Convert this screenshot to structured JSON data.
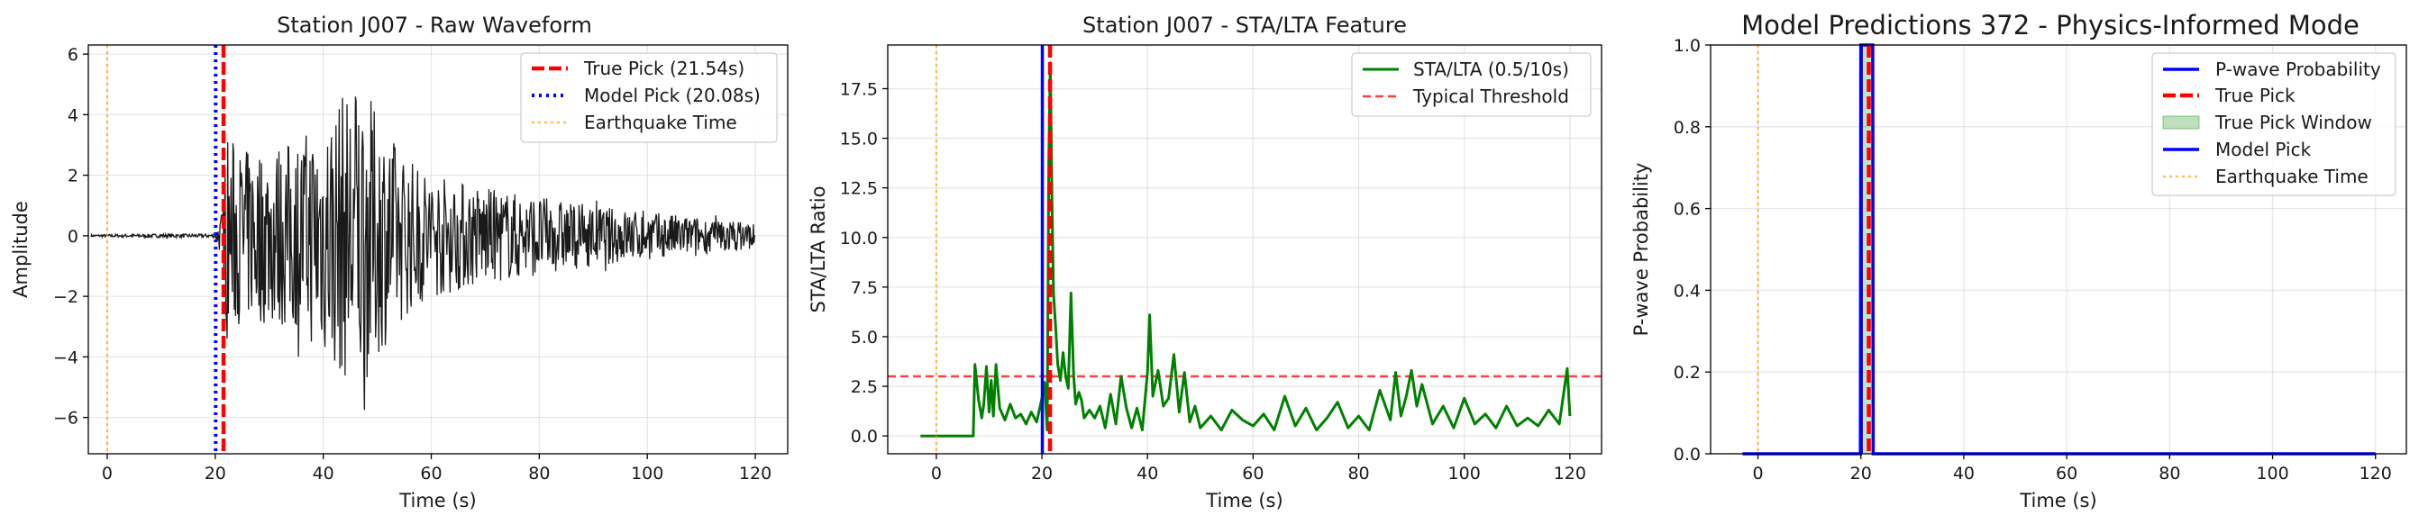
{
  "chart_data": [
    {
      "type": "line",
      "title": "Station J007 - Raw Waveform",
      "xlabel": "Time (s)",
      "ylabel": "Amplitude",
      "xlim": [
        -3.5,
        126
      ],
      "ylim": [
        -7.2,
        6.3
      ],
      "xticks": [
        0,
        20,
        40,
        60,
        80,
        100,
        120
      ],
      "xtick_labels": [
        "0",
        "20",
        "40",
        "60",
        "80",
        "100",
        "120"
      ],
      "yticks": [
        -6,
        -4,
        -2,
        0,
        2,
        4,
        6
      ],
      "ytick_labels": [
        "−6",
        "−4",
        "−2",
        "0",
        "2",
        "4",
        "6"
      ],
      "grid": true,
      "legend_position": "upper-right",
      "vlines": [
        {
          "name": "True Pick (21.54s)",
          "x": 21.54,
          "color": "#ff0000",
          "style": "dashed"
        },
        {
          "name": "Model Pick (20.08s)",
          "x": 20.08,
          "color": "#0000ff",
          "style": "dotted"
        },
        {
          "name": "Earthquake Time",
          "x": 0,
          "color": "#ffa500",
          "style": "dotted"
        }
      ],
      "series": [
        {
          "color": "#1a1a1a",
          "approx_envelope": {
            "x": [
              -3,
              0,
              10,
              20,
              21.5,
              22,
              25,
              30,
              35,
              40,
              45,
              47,
              50,
              55,
              60,
              70,
              80,
              90,
              100,
              110,
              120
            ],
            "amplitude": [
              0.04,
              0.05,
              0.06,
              0.06,
              1.0,
              3.5,
              2.8,
              3.0,
              3.2,
              4.0,
              5.0,
              5.2,
              4.0,
              2.7,
              2.1,
              1.6,
              1.3,
              1.0,
              0.8,
              0.6,
              0.45
            ]
          }
        }
      ]
    },
    {
      "type": "line",
      "title": "Station J007 - STA/LTA Feature",
      "xlabel": "Time (s)",
      "ylabel": "STA/LTA Ratio",
      "xlim": [
        -9.2,
        126
      ],
      "ylim": [
        -0.9,
        19.7
      ],
      "xticks": [
        0,
        20,
        40,
        60,
        80,
        100,
        120
      ],
      "xtick_labels": [
        "0",
        "20",
        "40",
        "60",
        "80",
        "100",
        "120"
      ],
      "yticks": [
        0.0,
        2.5,
        5.0,
        7.5,
        10.0,
        12.5,
        15.0,
        17.5
      ],
      "ytick_labels": [
        "0.0",
        "2.5",
        "5.0",
        "7.5",
        "10.0",
        "12.5",
        "15.0",
        "17.5"
      ],
      "grid": true,
      "legend_position": "upper-right",
      "hlines": [
        {
          "name": "Typical Threshold",
          "y": 3.0,
          "color": "#ff0000",
          "style": "dashed"
        }
      ],
      "vlines": [
        {
          "x": 20.08,
          "color": "#0000ff",
          "style": "solid"
        },
        {
          "x": 21.54,
          "color": "#ff0000",
          "style": "dashed"
        },
        {
          "x": 0,
          "color": "#ffa500",
          "style": "dotted"
        }
      ],
      "series": [
        {
          "name": "STA/LTA (0.5/10s)",
          "color": "#008000",
          "x": [
            -3,
            7,
            7.3,
            8,
            8.6,
            9,
            9.5,
            10,
            10.4,
            10.8,
            11.3,
            12,
            13,
            14,
            15,
            16,
            17,
            18,
            19,
            20,
            20.5,
            21,
            21.3,
            21.6,
            21.9,
            22.2,
            22.6,
            23,
            23.5,
            24,
            24.5,
            25,
            25.5,
            26,
            26.4,
            27,
            27.5,
            28,
            29,
            30,
            31,
            32,
            33,
            34,
            35,
            36,
            37,
            38,
            39,
            40,
            40.4,
            41,
            42,
            43,
            44,
            45,
            46,
            47,
            48,
            49,
            50,
            52,
            54,
            56,
            58,
            60,
            62,
            64,
            66,
            68,
            70,
            72,
            74,
            76,
            78,
            80,
            82,
            84,
            86,
            87,
            88,
            89,
            90,
            91,
            92,
            94,
            96,
            98,
            100,
            102,
            104,
            106,
            108,
            110,
            112,
            114,
            116,
            118,
            119.5,
            120
          ],
          "y": [
            0.0,
            0.0,
            3.6,
            1.8,
            0.9,
            1.6,
            3.5,
            1.2,
            2.8,
            1.0,
            3.6,
            1.4,
            0.8,
            1.6,
            0.9,
            1.1,
            0.6,
            1.2,
            0.7,
            1.9,
            2.7,
            0.3,
            14.0,
            18.8,
            12.0,
            7.2,
            5.5,
            3.6,
            2.8,
            4.2,
            3.0,
            2.4,
            7.2,
            3.1,
            1.6,
            2.2,
            1.8,
            0.9,
            1.3,
            0.9,
            1.5,
            0.4,
            2.1,
            0.6,
            3.0,
            1.4,
            0.4,
            1.4,
            0.3,
            3.2,
            6.1,
            2.0,
            3.3,
            1.5,
            1.9,
            4.1,
            1.2,
            3.2,
            0.7,
            1.5,
            0.4,
            1.0,
            0.3,
            1.3,
            0.8,
            0.5,
            1.1,
            0.3,
            2.0,
            0.5,
            1.4,
            0.3,
            0.9,
            1.7,
            0.4,
            1.0,
            0.3,
            2.3,
            0.8,
            3.2,
            1.0,
            2.0,
            3.3,
            1.5,
            2.6,
            0.6,
            1.5,
            0.4,
            1.9,
            0.6,
            1.1,
            0.4,
            1.5,
            0.5,
            0.9,
            0.5,
            1.3,
            0.6,
            3.4,
            1.0
          ]
        }
      ]
    },
    {
      "type": "line",
      "title": "Model Predictions 372 - Physics-Informed Mode",
      "xlabel": "Time (s)",
      "ylabel": "P-wave Probability",
      "xlim": [
        -9.2,
        126
      ],
      "ylim": [
        0.0,
        1.0
      ],
      "xticks": [
        0,
        20,
        40,
        60,
        80,
        100,
        120
      ],
      "xtick_labels": [
        "0",
        "20",
        "40",
        "60",
        "80",
        "100",
        "120"
      ],
      "yticks": [
        0.0,
        0.2,
        0.4,
        0.6,
        0.8,
        1.0
      ],
      "ytick_labels": [
        "0.0",
        "0.2",
        "0.4",
        "0.6",
        "0.8",
        "1.0"
      ],
      "grid": true,
      "legend_position": "upper-right",
      "shaded_regions": [
        {
          "name": "True Pick Window",
          "x0": 20.5,
          "x1": 22.6,
          "color": "#008000"
        }
      ],
      "vlines": [
        {
          "name": "True Pick",
          "x": 21.54,
          "color": "#ff0000",
          "style": "dashed"
        },
        {
          "name": "Model Pick",
          "x": 20.08,
          "color": "#0000ff",
          "style": "solid"
        },
        {
          "name": "Earthquake Time",
          "x": 0,
          "color": "#ffa500",
          "style": "dotted"
        }
      ],
      "series": [
        {
          "name": "P-wave Probability",
          "color": "#0000ff",
          "x": [
            -3,
            19.9,
            20.0,
            20.1,
            22.2,
            22.3,
            22.4,
            120
          ],
          "y": [
            0.0,
            0.0,
            1.0,
            1.0,
            1.0,
            1.0,
            0.0,
            0.0
          ]
        }
      ]
    }
  ],
  "panels": {
    "p1": {
      "title": "Station J007 - Raw Waveform",
      "xlabel": "Time (s)",
      "ylabel": "Amplitude",
      "legend": [
        "True Pick (21.54s)",
        "Model Pick (20.08s)",
        "Earthquake Time"
      ]
    },
    "p2": {
      "title": "Station J007 - STA/LTA Feature",
      "xlabel": "Time (s)",
      "ylabel": "STA/LTA Ratio",
      "legend": [
        "STA/LTA (0.5/10s)",
        "Typical Threshold"
      ]
    },
    "p3": {
      "title": "Model Predictions 372 - Physics-Informed Mode",
      "xlabel": "Time (s)",
      "ylabel": "P-wave Probability",
      "legend": [
        "P-wave Probability",
        "True Pick",
        "True Pick Window",
        "Model Pick",
        "Earthquake Time"
      ]
    }
  },
  "colors": {
    "true_pick": "#ff0000",
    "model_pick": "#0000ff",
    "earthquake_time": "#ffa500",
    "sta_lta": "#008000",
    "waveform": "#1a1a1a"
  }
}
